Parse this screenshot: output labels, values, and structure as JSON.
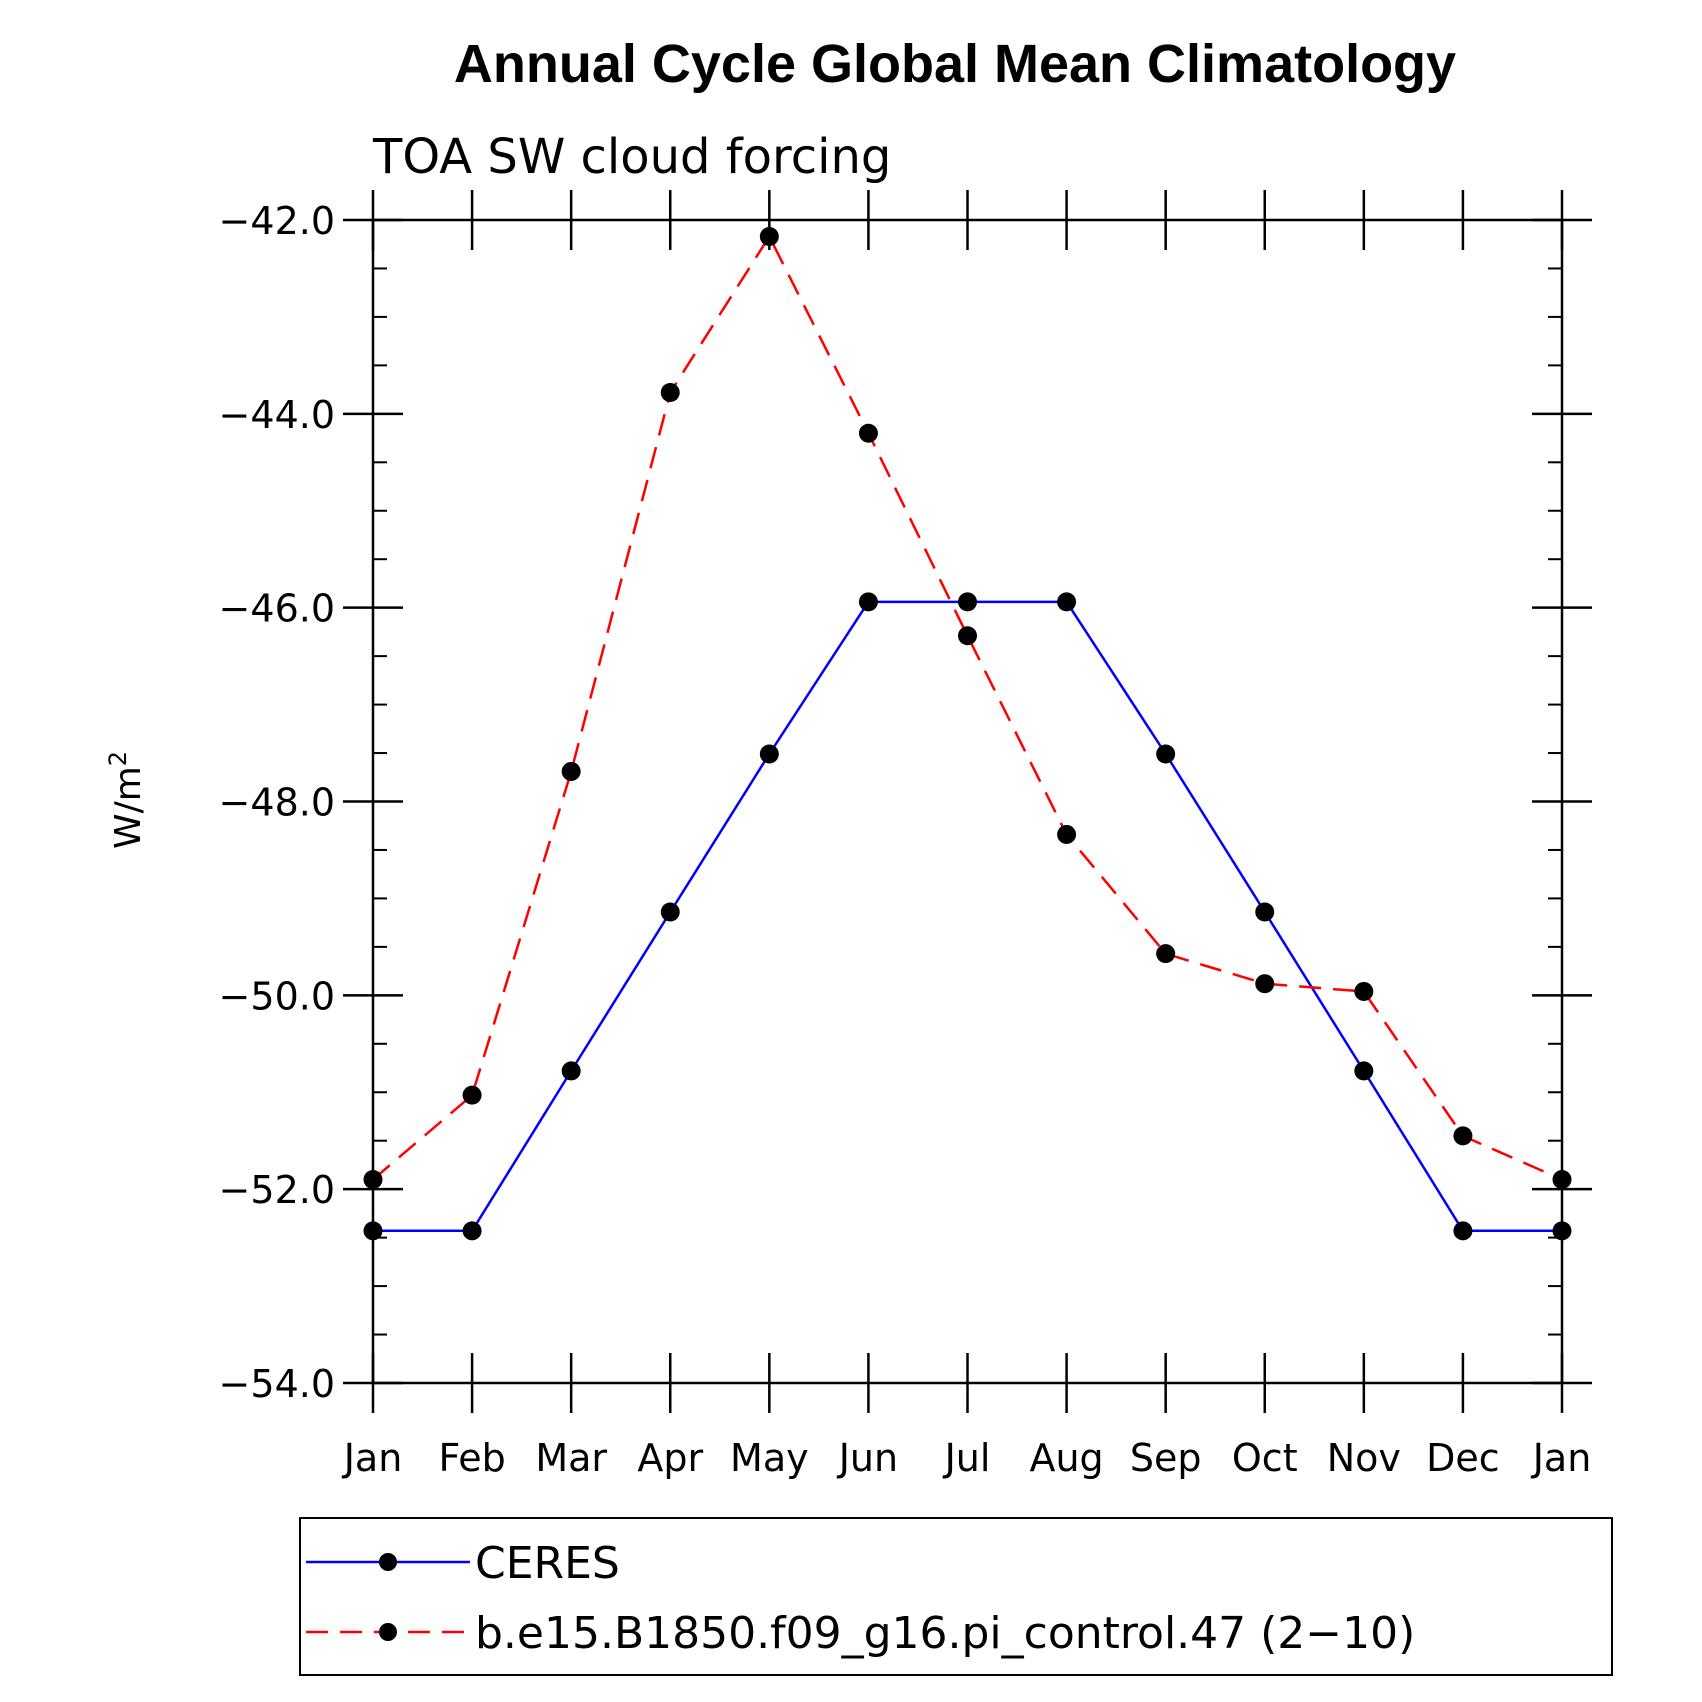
{
  "chart_data": {
    "type": "line",
    "title": "Annual Cycle Global Mean Climatology",
    "subtitle": "TOA SW cloud forcing",
    "xlabel": "",
    "ylabel": "W/m",
    "ylabel_superscript": "2",
    "categories": [
      "Jan",
      "Feb",
      "Mar",
      "Apr",
      "May",
      "Jun",
      "Jul",
      "Aug",
      "Sep",
      "Oct",
      "Nov",
      "Dec",
      "Jan"
    ],
    "ylim": [
      -54.0,
      -42.0
    ],
    "yticks": [
      -54.0,
      -52.0,
      -50.0,
      -48.0,
      -46.0,
      -44.0,
      -42.0
    ],
    "ytick_labels": [
      "−54.0",
      "−52.0",
      "−50.0",
      "−48.0",
      "−46.0",
      "−44.0",
      "−42.0"
    ],
    "y_minor_step": 0.5,
    "grid": false,
    "legend_position": "bottom",
    "series": [
      {
        "name": "CERES",
        "color": "#0000ff",
        "dash": "solid",
        "marker": "filled-circle",
        "marker_color": "#000000",
        "values": [
          -52.43,
          -52.43,
          -50.78,
          -49.14,
          -47.51,
          -45.94,
          -45.94,
          -45.94,
          -47.51,
          -49.14,
          -50.78,
          -52.43,
          -52.43
        ]
      },
      {
        "name": "b.e15.B1850.f09_g16.pi_control.47 (2−10)",
        "color": "#ff0000",
        "dash": "dashed",
        "marker": "filled-circle",
        "marker_color": "#000000",
        "values": [
          -51.9,
          -51.03,
          -47.69,
          -43.78,
          -42.17,
          -44.2,
          -46.29,
          -48.34,
          -49.57,
          -49.88,
          -49.96,
          -51.45,
          -51.9
        ]
      }
    ]
  }
}
